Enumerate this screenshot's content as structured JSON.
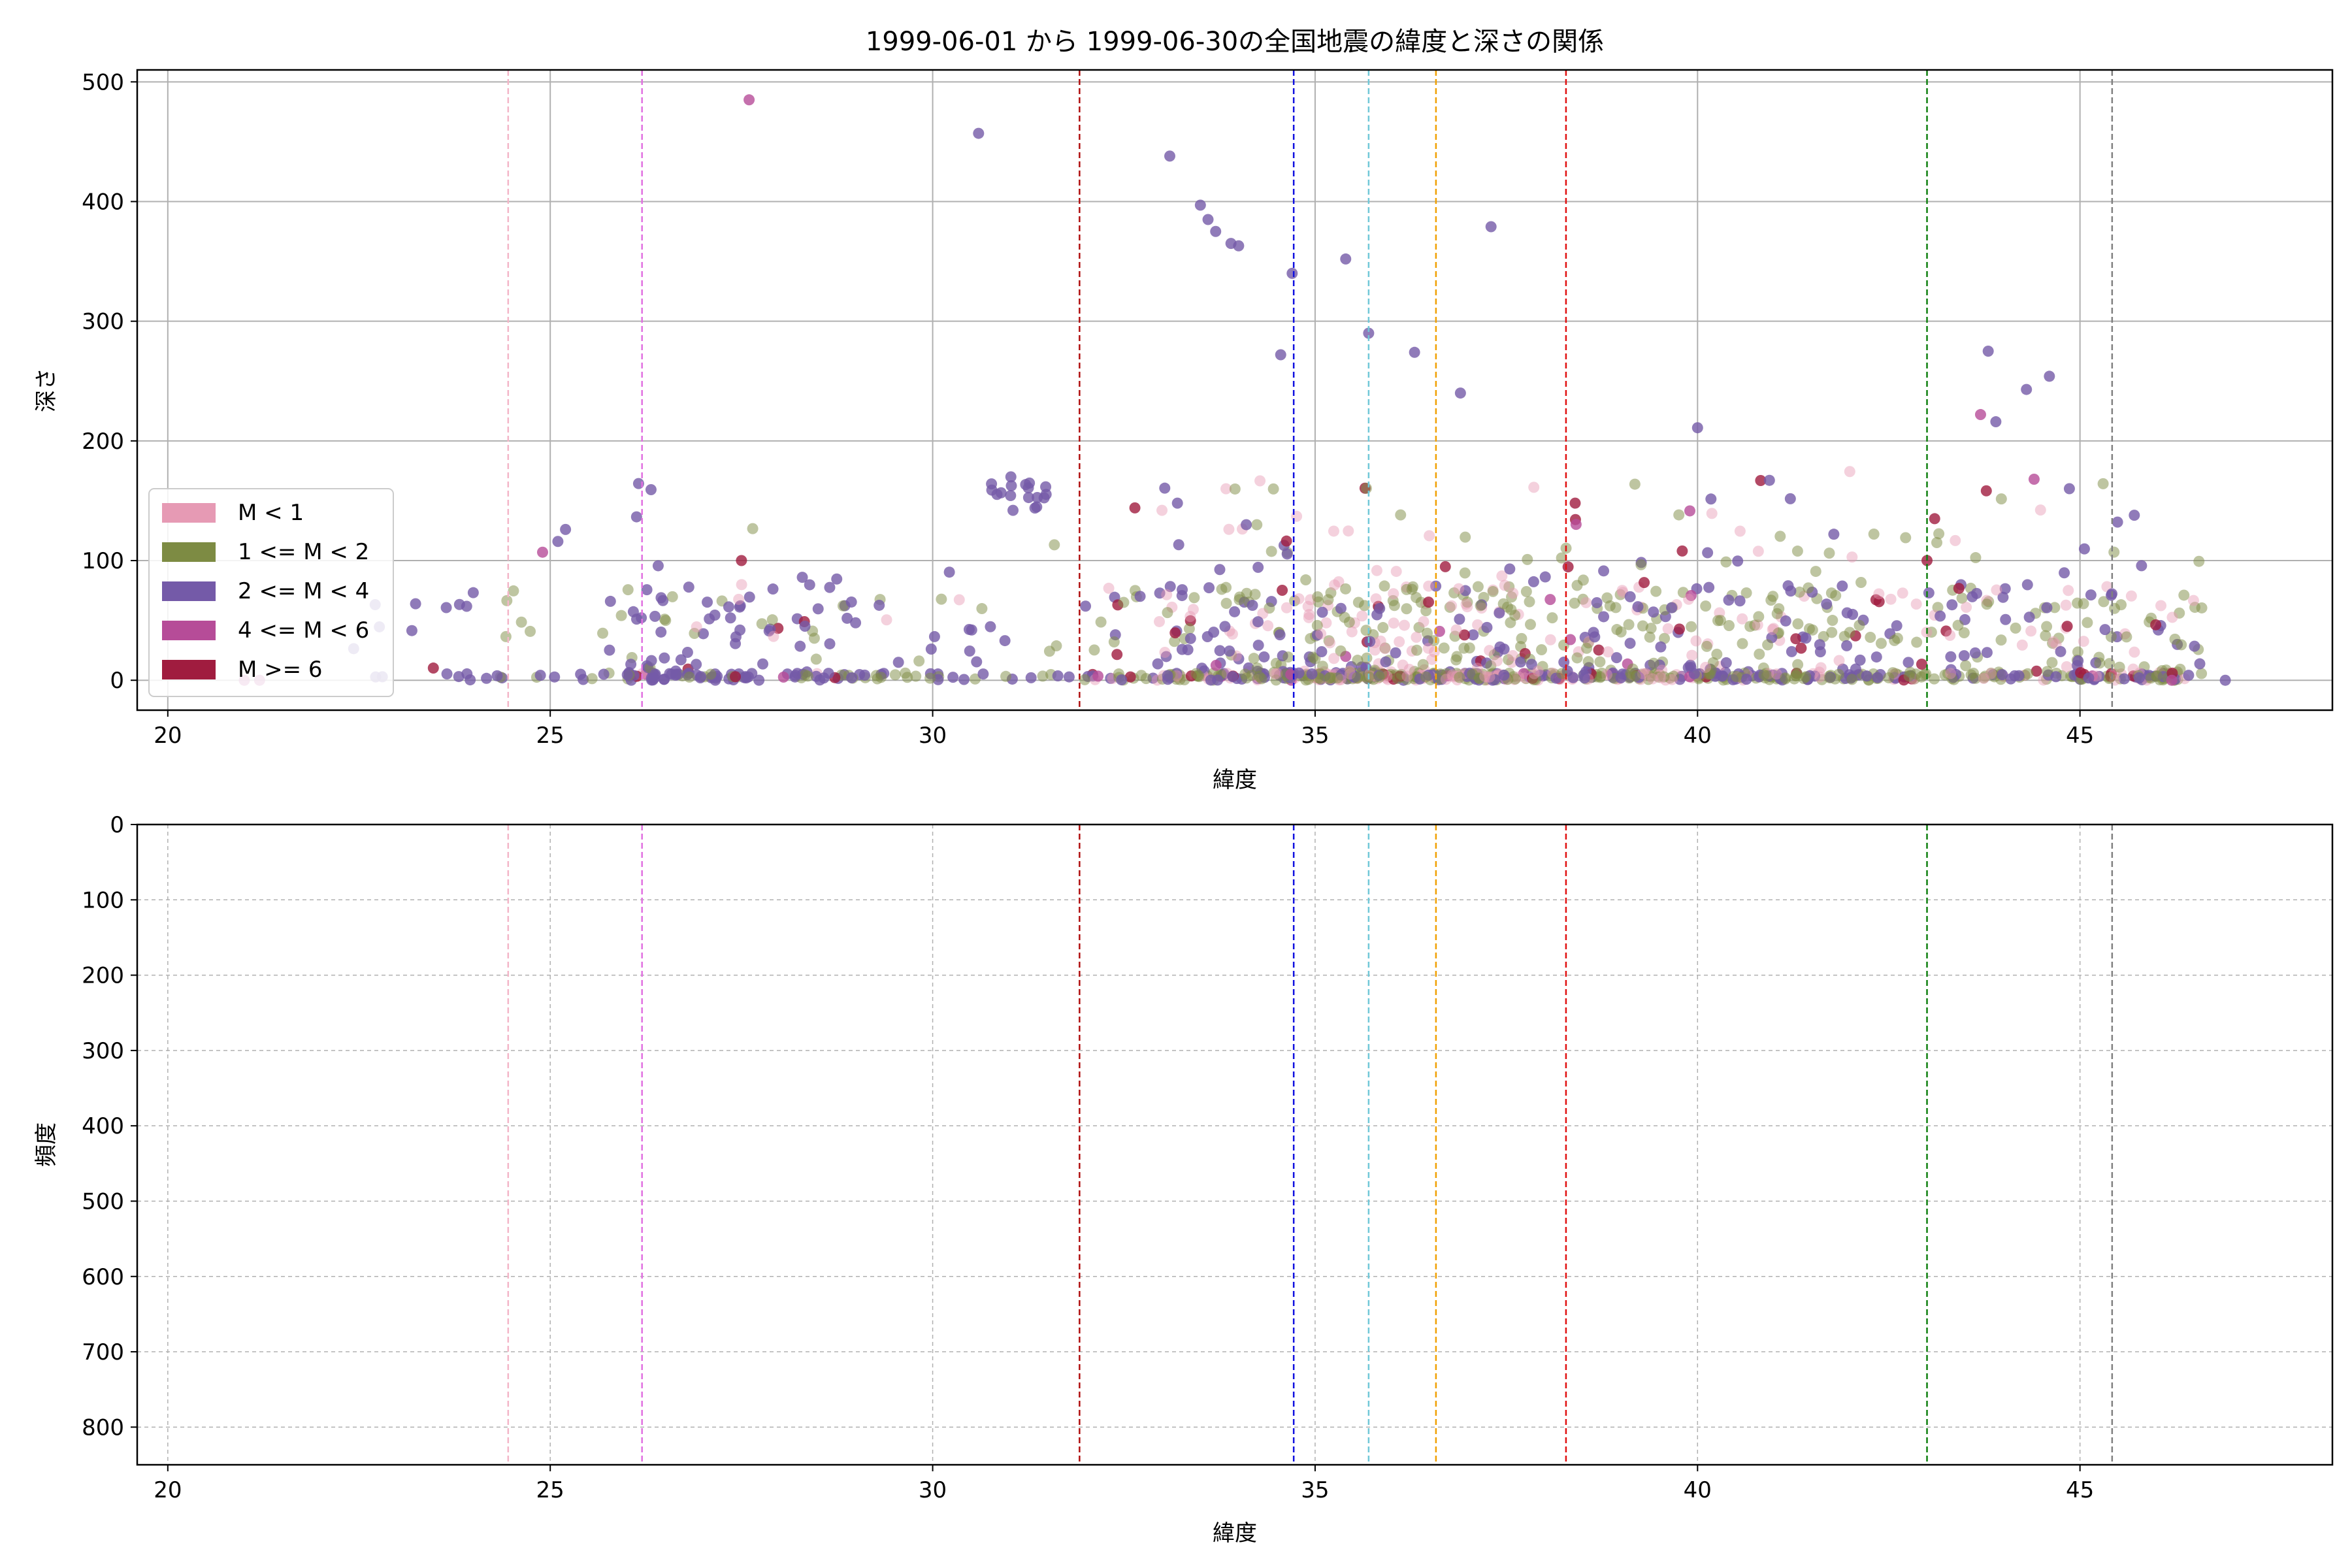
{
  "figure": {
    "title": "1999-06-01 から 1999-06-30の全国地震の緯度と深さの関係"
  },
  "colors": {
    "legend": [
      "#e69ab4",
      "#7d8b43",
      "#745aa8",
      "#b64c98",
      "#a01c3f"
    ],
    "hist_bar": "#add8e6",
    "hist_edge": "#000000",
    "grid": "#b0b0b0",
    "vlines": [
      "#f4b6c8",
      "#e070e0",
      "#b01010",
      "#1010e0",
      "#70c8d8",
      "#f0a000",
      "#e01010",
      "#108010",
      "#808080"
    ]
  },
  "chart_data": [
    {
      "type": "scatter",
      "xlabel": "緯度",
      "ylabel": "深さ",
      "xlim": [
        19.6,
        48.3
      ],
      "ylim": [
        510,
        -25
      ],
      "y_inverted": true,
      "xticks": [
        20,
        25,
        30,
        35,
        40,
        45
      ],
      "yticks": [
        0,
        100,
        200,
        300,
        400,
        500
      ],
      "grid": true,
      "legend_position": "lower-left",
      "legend": [
        "M < 1",
        "1 <= M < 2",
        "2 <= M < 4",
        "4 <= M < 6",
        "M >= 6"
      ],
      "vlines_x": [
        24.45,
        26.2,
        31.92,
        34.72,
        35.7,
        36.58,
        38.28,
        43.0,
        45.42
      ],
      "notable_points": [
        {
          "x": 21.0,
          "y": 0,
          "class": 3
        },
        {
          "x": 21.2,
          "y": 0,
          "class": 3
        },
        {
          "x": 27.6,
          "y": 485,
          "class": 3
        },
        {
          "x": 30.6,
          "y": 457,
          "class": 2
        },
        {
          "x": 33.1,
          "y": 438,
          "class": 2
        },
        {
          "x": 33.5,
          "y": 397,
          "class": 2
        },
        {
          "x": 33.6,
          "y": 385,
          "class": 2
        },
        {
          "x": 33.7,
          "y": 375,
          "class": 2
        },
        {
          "x": 33.9,
          "y": 365,
          "class": 2
        },
        {
          "x": 34.0,
          "y": 363,
          "class": 2
        },
        {
          "x": 34.7,
          "y": 340,
          "class": 2
        },
        {
          "x": 35.4,
          "y": 352,
          "class": 2
        },
        {
          "x": 37.3,
          "y": 379,
          "class": 2
        },
        {
          "x": 34.55,
          "y": 272,
          "class": 2
        },
        {
          "x": 35.7,
          "y": 290,
          "class": 2
        },
        {
          "x": 36.3,
          "y": 274,
          "class": 2
        },
        {
          "x": 36.9,
          "y": 240,
          "class": 2
        },
        {
          "x": 43.8,
          "y": 275,
          "class": 2
        },
        {
          "x": 44.6,
          "y": 254,
          "class": 2
        },
        {
          "x": 44.3,
          "y": 243,
          "class": 2
        },
        {
          "x": 43.7,
          "y": 222,
          "class": 3
        },
        {
          "x": 43.9,
          "y": 216,
          "class": 2
        },
        {
          "x": 40.0,
          "y": 211,
          "class": 2
        },
        {
          "x": 44.4,
          "y": 168,
          "class": 3
        },
        {
          "x": 25.2,
          "y": 126,
          "class": 2
        },
        {
          "x": 25.1,
          "y": 116,
          "class": 2
        },
        {
          "x": 24.9,
          "y": 107,
          "class": 3
        },
        {
          "x": 27.5,
          "y": 100,
          "class": 4
        },
        {
          "x": 34.1,
          "y": 130,
          "class": 2
        },
        {
          "x": 33.2,
          "y": 148,
          "class": 2
        },
        {
          "x": 38.4,
          "y": 148,
          "class": 4
        },
        {
          "x": 39.8,
          "y": 108,
          "class": 4
        },
        {
          "x": 43.0,
          "y": 100,
          "class": 4
        },
        {
          "x": 43.1,
          "y": 135,
          "class": 4
        },
        {
          "x": 46.9,
          "y": 0,
          "class": 2
        },
        {
          "x": 46.2,
          "y": 0,
          "class": 3
        }
      ]
    },
    {
      "type": "bar",
      "xlabel": "緯度",
      "ylabel": "頻度",
      "xlim": [
        19.6,
        48.3
      ],
      "ylim": [
        0,
        850
      ],
      "xticks": [
        20,
        25,
        30,
        35,
        40,
        45
      ],
      "yticks": [
        0,
        100,
        200,
        300,
        400,
        500,
        600,
        700,
        800
      ],
      "grid": true,
      "bin_start": 20.93,
      "bin_width": 0.5,
      "values": [
        2,
        0,
        1,
        3,
        3,
        5,
        14,
        82,
        74,
        29,
        14,
        31,
        17,
        37,
        82,
        79,
        44,
        33,
        14,
        40,
        65,
        56,
        227,
        375,
        178,
        182,
        281,
        808,
        321,
        451,
        342,
        340,
        257,
        241,
        143,
        127,
        126,
        78,
        131,
        144,
        57,
        76,
        102,
        153,
        142,
        237,
        72,
        42,
        22,
        12,
        2,
        3,
        1
      ],
      "vlines_x": [
        24.45,
        26.2,
        31.92,
        34.72,
        35.7,
        36.58,
        38.28,
        43.0,
        45.42
      ]
    }
  ]
}
